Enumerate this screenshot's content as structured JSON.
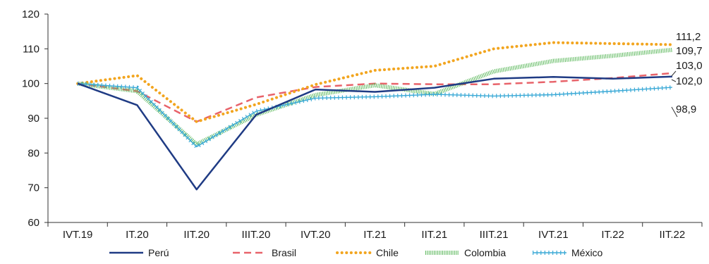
{
  "chart_data": {
    "type": "line",
    "categories": [
      "IVT.19",
      "IT.20",
      "IIT.20",
      "IIIT.20",
      "IVT.20",
      "IT.21",
      "IIT.21",
      "IIIT.21",
      "IVT.21",
      "IT.22",
      "IIT.22"
    ],
    "ylim": [
      60,
      120
    ],
    "yticks": [
      60,
      70,
      80,
      90,
      100,
      110,
      120
    ],
    "grid": false,
    "legend_position": "bottom",
    "series": [
      {
        "name": "Perú",
        "color": "#1f3b84",
        "style": "solid",
        "values": [
          100,
          93.8,
          69.5,
          91.0,
          98.3,
          97.6,
          98.8,
          101.4,
          101.9,
          101.4,
          102.0
        ]
      },
      {
        "name": "Brasil",
        "color": "#e8636a",
        "style": "dashed",
        "values": [
          100,
          97.8,
          89.0,
          96.0,
          99.0,
          100.0,
          99.8,
          99.8,
          100.5,
          101.6,
          103.0
        ]
      },
      {
        "name": "Chile",
        "color": "#f2a51f",
        "style": "dotted",
        "values": [
          100,
          102.3,
          89.0,
          94.0,
          99.7,
          103.8,
          105.0,
          110.0,
          111.8,
          111.5,
          111.2
        ]
      },
      {
        "name": "Colombia",
        "color": "#5cb85c",
        "style": "striped",
        "values": [
          100,
          97.8,
          82.5,
          91.0,
          96.7,
          99.5,
          97.0,
          103.5,
          106.5,
          108.0,
          109.7
        ]
      },
      {
        "name": "México",
        "color": "#3aa9d6",
        "style": "chain",
        "values": [
          100,
          98.8,
          81.8,
          92.0,
          95.8,
          96.2,
          96.9,
          96.4,
          96.8,
          97.8,
          98.9
        ]
      }
    ],
    "end_labels": [
      {
        "series": "Chile",
        "text": "111,2"
      },
      {
        "series": "Colombia",
        "text": "109,7"
      },
      {
        "series": "Brasil",
        "text": "103,0"
      },
      {
        "series": "Perú",
        "text": "102,0"
      },
      {
        "series": "México",
        "text": "98,9"
      }
    ]
  }
}
